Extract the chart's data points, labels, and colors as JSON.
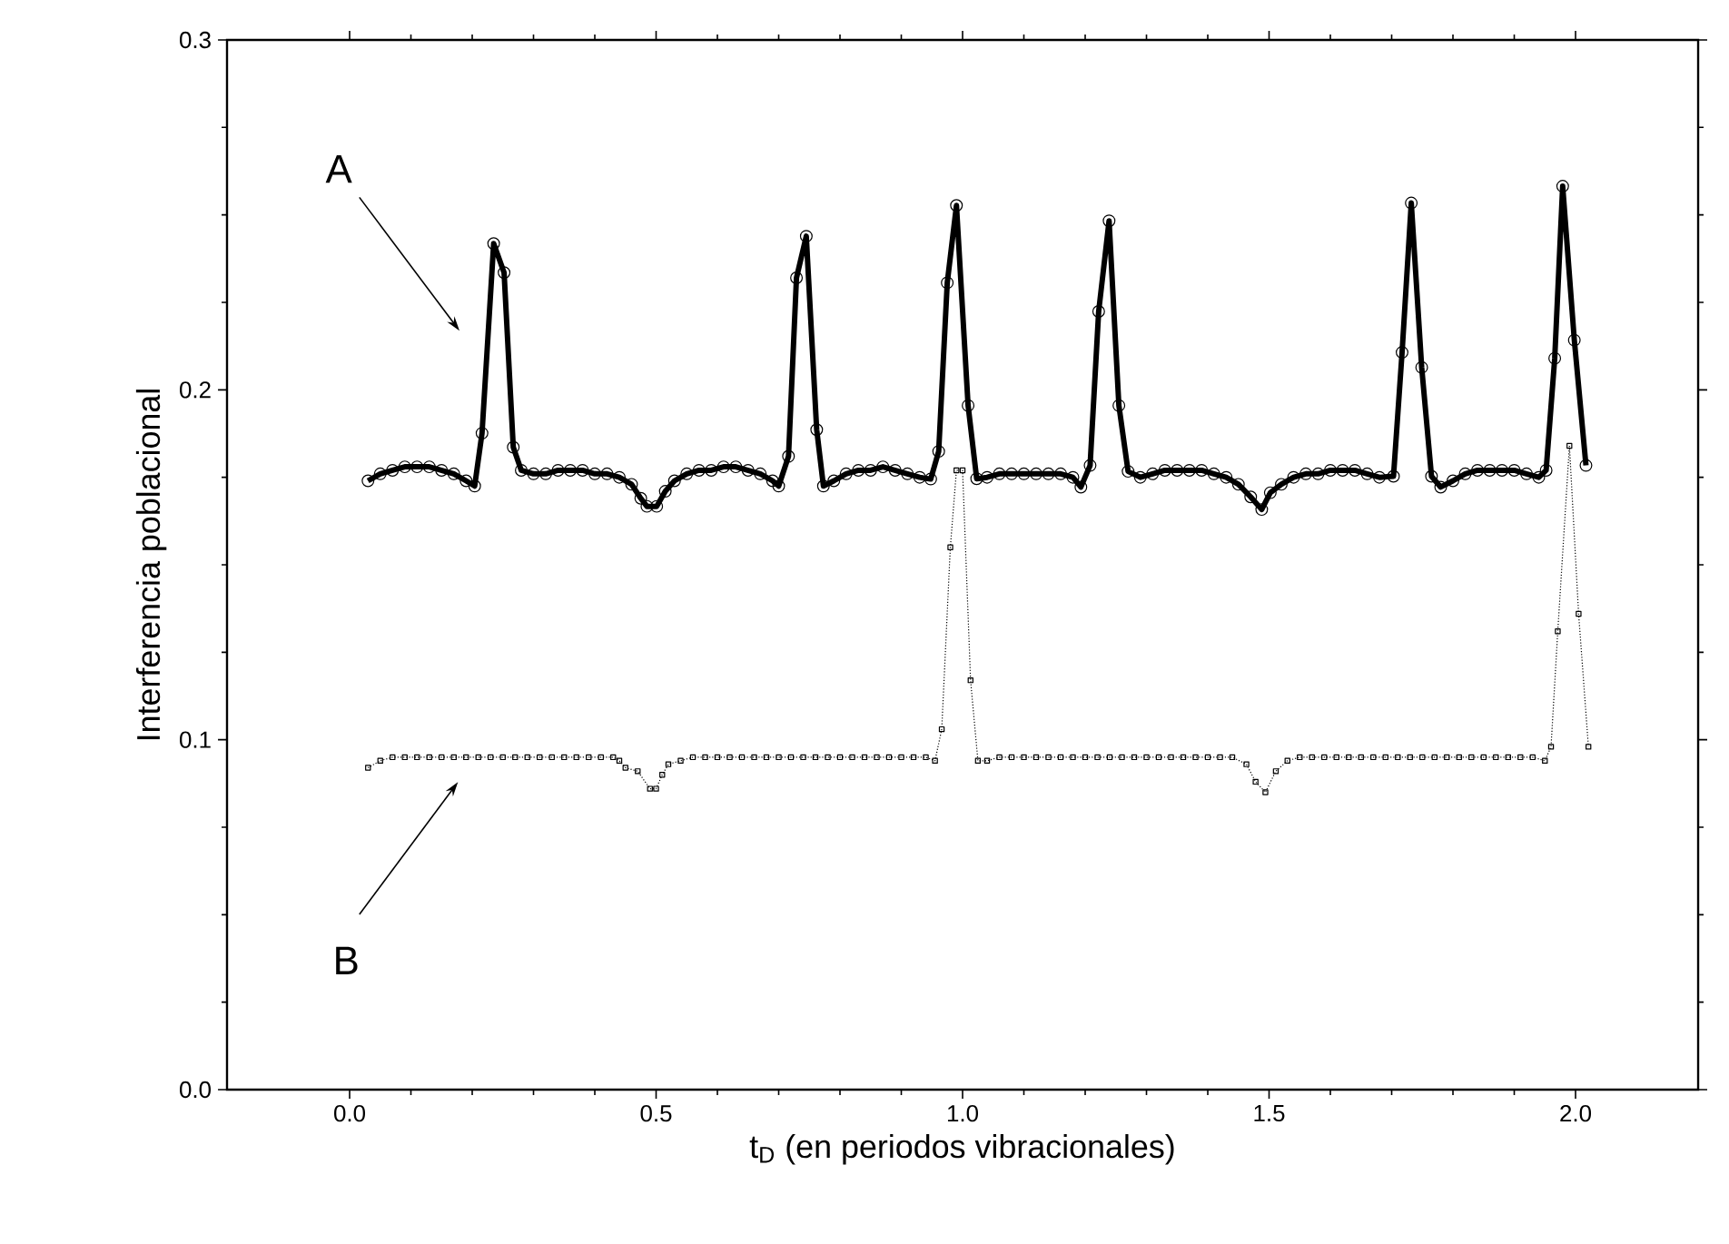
{
  "chart_data": {
    "type": "line",
    "xlabel": "t$_{D}$ (en periodos vibracionales)",
    "ylabel": "Interferencia poblacional",
    "xlim": [
      -0.2,
      2.2
    ],
    "ylim": [
      0,
      0.3
    ],
    "xticks": [
      {
        "value": 0,
        "label": "0.0"
      },
      {
        "value": 0.5,
        "label": "0.5"
      },
      {
        "value": 1,
        "label": "1.0"
      },
      {
        "value": 1.5,
        "label": "1.5"
      },
      {
        "value": 2,
        "label": "2.0"
      }
    ],
    "yticks": [
      {
        "value": 0,
        "label": "0.0"
      },
      {
        "value": 0.1,
        "label": "0.1"
      },
      {
        "value": 0.2,
        "label": "0.2"
      },
      {
        "value": 0.3,
        "label": "0.3"
      }
    ],
    "grid": false,
    "series": [
      {
        "color": "#000000",
        "marker": "circle",
        "line_style": "solid",
        "x": [
          0.03,
          0.05,
          0.07,
          0.09,
          0.11,
          0.13,
          0.15,
          0.17,
          0.19,
          0.204,
          0.216,
          0.235,
          0.252,
          0.267,
          0.28,
          0.3,
          0.32,
          0.34,
          0.36,
          0.38,
          0.4,
          0.42,
          0.44,
          0.46,
          0.475,
          0.485,
          0.501,
          0.515,
          0.53,
          0.55,
          0.57,
          0.59,
          0.61,
          0.63,
          0.65,
          0.67,
          0.69,
          0.7,
          0.716,
          0.729,
          0.745,
          0.762,
          0.773,
          0.79,
          0.81,
          0.83,
          0.85,
          0.87,
          0.89,
          0.91,
          0.93,
          0.948,
          0.961,
          0.975,
          0.99,
          1.009,
          1.023,
          1.04,
          1.06,
          1.08,
          1.1,
          1.12,
          1.14,
          1.16,
          1.18,
          1.193,
          1.208,
          1.222,
          1.239,
          1.255,
          1.27,
          1.29,
          1.31,
          1.33,
          1.35,
          1.37,
          1.39,
          1.41,
          1.43,
          1.45,
          1.47,
          1.488,
          1.502,
          1.52,
          1.54,
          1.56,
          1.58,
          1.6,
          1.62,
          1.64,
          1.66,
          1.68,
          1.703,
          1.717,
          1.732,
          1.749,
          1.765,
          1.78,
          1.8,
          1.82,
          1.84,
          1.86,
          1.88,
          1.9,
          1.92,
          1.94,
          1.952,
          1.966,
          1.979,
          1.998,
          2.017
        ],
        "values": [
          0.174,
          0.176,
          0.177,
          0.178,
          0.178,
          0.178,
          0.177,
          0.176,
          0.174,
          0.1725,
          0.1876,
          0.2418,
          0.2335,
          0.1836,
          0.177,
          0.176,
          0.176,
          0.177,
          0.177,
          0.177,
          0.176,
          0.176,
          0.175,
          0.173,
          0.169,
          0.1667,
          0.1667,
          0.171,
          0.174,
          0.176,
          0.177,
          0.177,
          0.178,
          0.178,
          0.177,
          0.176,
          0.174,
          0.1725,
          0.181,
          0.232,
          0.2439,
          0.1886,
          0.1725,
          0.174,
          0.176,
          0.177,
          0.177,
          0.178,
          0.177,
          0.176,
          0.175,
          0.1745,
          0.1824,
          0.2306,
          0.2527,
          0.1955,
          0.1746,
          0.175,
          0.176,
          0.176,
          0.176,
          0.176,
          0.176,
          0.176,
          0.175,
          0.1722,
          0.1784,
          0.2224,
          0.2483,
          0.1955,
          0.1767,
          0.175,
          0.176,
          0.177,
          0.177,
          0.177,
          0.177,
          0.176,
          0.175,
          0.173,
          0.1694,
          0.1658,
          0.1706,
          0.173,
          0.175,
          0.176,
          0.176,
          0.177,
          0.177,
          0.177,
          0.176,
          0.175,
          0.1753,
          0.2107,
          0.2534,
          0.2064,
          0.1753,
          0.1722,
          0.174,
          0.176,
          0.177,
          0.177,
          0.177,
          0.177,
          0.176,
          0.175,
          0.177,
          0.209,
          0.2582,
          0.2142,
          0.1784
        ]
      },
      {
        "color": "#000000",
        "marker": "square",
        "line_style": "dotted",
        "x": [
          0.03,
          0.05,
          0.07,
          0.09,
          0.11,
          0.13,
          0.15,
          0.17,
          0.19,
          0.21,
          0.23,
          0.25,
          0.27,
          0.29,
          0.31,
          0.33,
          0.35,
          0.37,
          0.39,
          0.41,
          0.43,
          0.44,
          0.45,
          0.47,
          0.49,
          0.5,
          0.51,
          0.52,
          0.54,
          0.56,
          0.58,
          0.6,
          0.62,
          0.64,
          0.66,
          0.68,
          0.7,
          0.72,
          0.74,
          0.76,
          0.78,
          0.8,
          0.82,
          0.84,
          0.86,
          0.88,
          0.9,
          0.92,
          0.94,
          0.955,
          0.966,
          0.98,
          0.99,
          1.0,
          1.013,
          1.025,
          1.04,
          1.06,
          1.08,
          1.1,
          1.12,
          1.14,
          1.16,
          1.18,
          1.2,
          1.22,
          1.24,
          1.26,
          1.28,
          1.3,
          1.32,
          1.34,
          1.36,
          1.38,
          1.4,
          1.42,
          1.44,
          1.463,
          1.478,
          1.494,
          1.511,
          1.53,
          1.55,
          1.57,
          1.59,
          1.61,
          1.63,
          1.65,
          1.67,
          1.69,
          1.71,
          1.73,
          1.75,
          1.77,
          1.79,
          1.81,
          1.83,
          1.85,
          1.87,
          1.89,
          1.91,
          1.93,
          1.95,
          1.96,
          1.971,
          1.99,
          2.005,
          2.021
        ],
        "values": [
          0.092,
          0.094,
          0.095,
          0.095,
          0.095,
          0.095,
          0.095,
          0.095,
          0.095,
          0.095,
          0.095,
          0.095,
          0.095,
          0.095,
          0.095,
          0.095,
          0.095,
          0.095,
          0.095,
          0.095,
          0.095,
          0.094,
          0.092,
          0.091,
          0.086,
          0.086,
          0.09,
          0.093,
          0.094,
          0.095,
          0.095,
          0.095,
          0.095,
          0.095,
          0.095,
          0.095,
          0.095,
          0.095,
          0.095,
          0.095,
          0.095,
          0.095,
          0.095,
          0.095,
          0.095,
          0.095,
          0.095,
          0.095,
          0.095,
          0.094,
          0.103,
          0.155,
          0.177,
          0.177,
          0.117,
          0.094,
          0.094,
          0.095,
          0.095,
          0.095,
          0.095,
          0.095,
          0.095,
          0.095,
          0.095,
          0.095,
          0.095,
          0.095,
          0.095,
          0.095,
          0.095,
          0.095,
          0.095,
          0.095,
          0.095,
          0.095,
          0.095,
          0.093,
          0.088,
          0.085,
          0.091,
          0.094,
          0.095,
          0.095,
          0.095,
          0.095,
          0.095,
          0.095,
          0.095,
          0.095,
          0.095,
          0.095,
          0.095,
          0.095,
          0.095,
          0.095,
          0.095,
          0.095,
          0.095,
          0.095,
          0.095,
          0.095,
          0.094,
          0.098,
          0.131,
          0.184,
          0.136,
          0.098
        ]
      }
    ],
    "annotations": [
      "A",
      "B"
    ]
  }
}
